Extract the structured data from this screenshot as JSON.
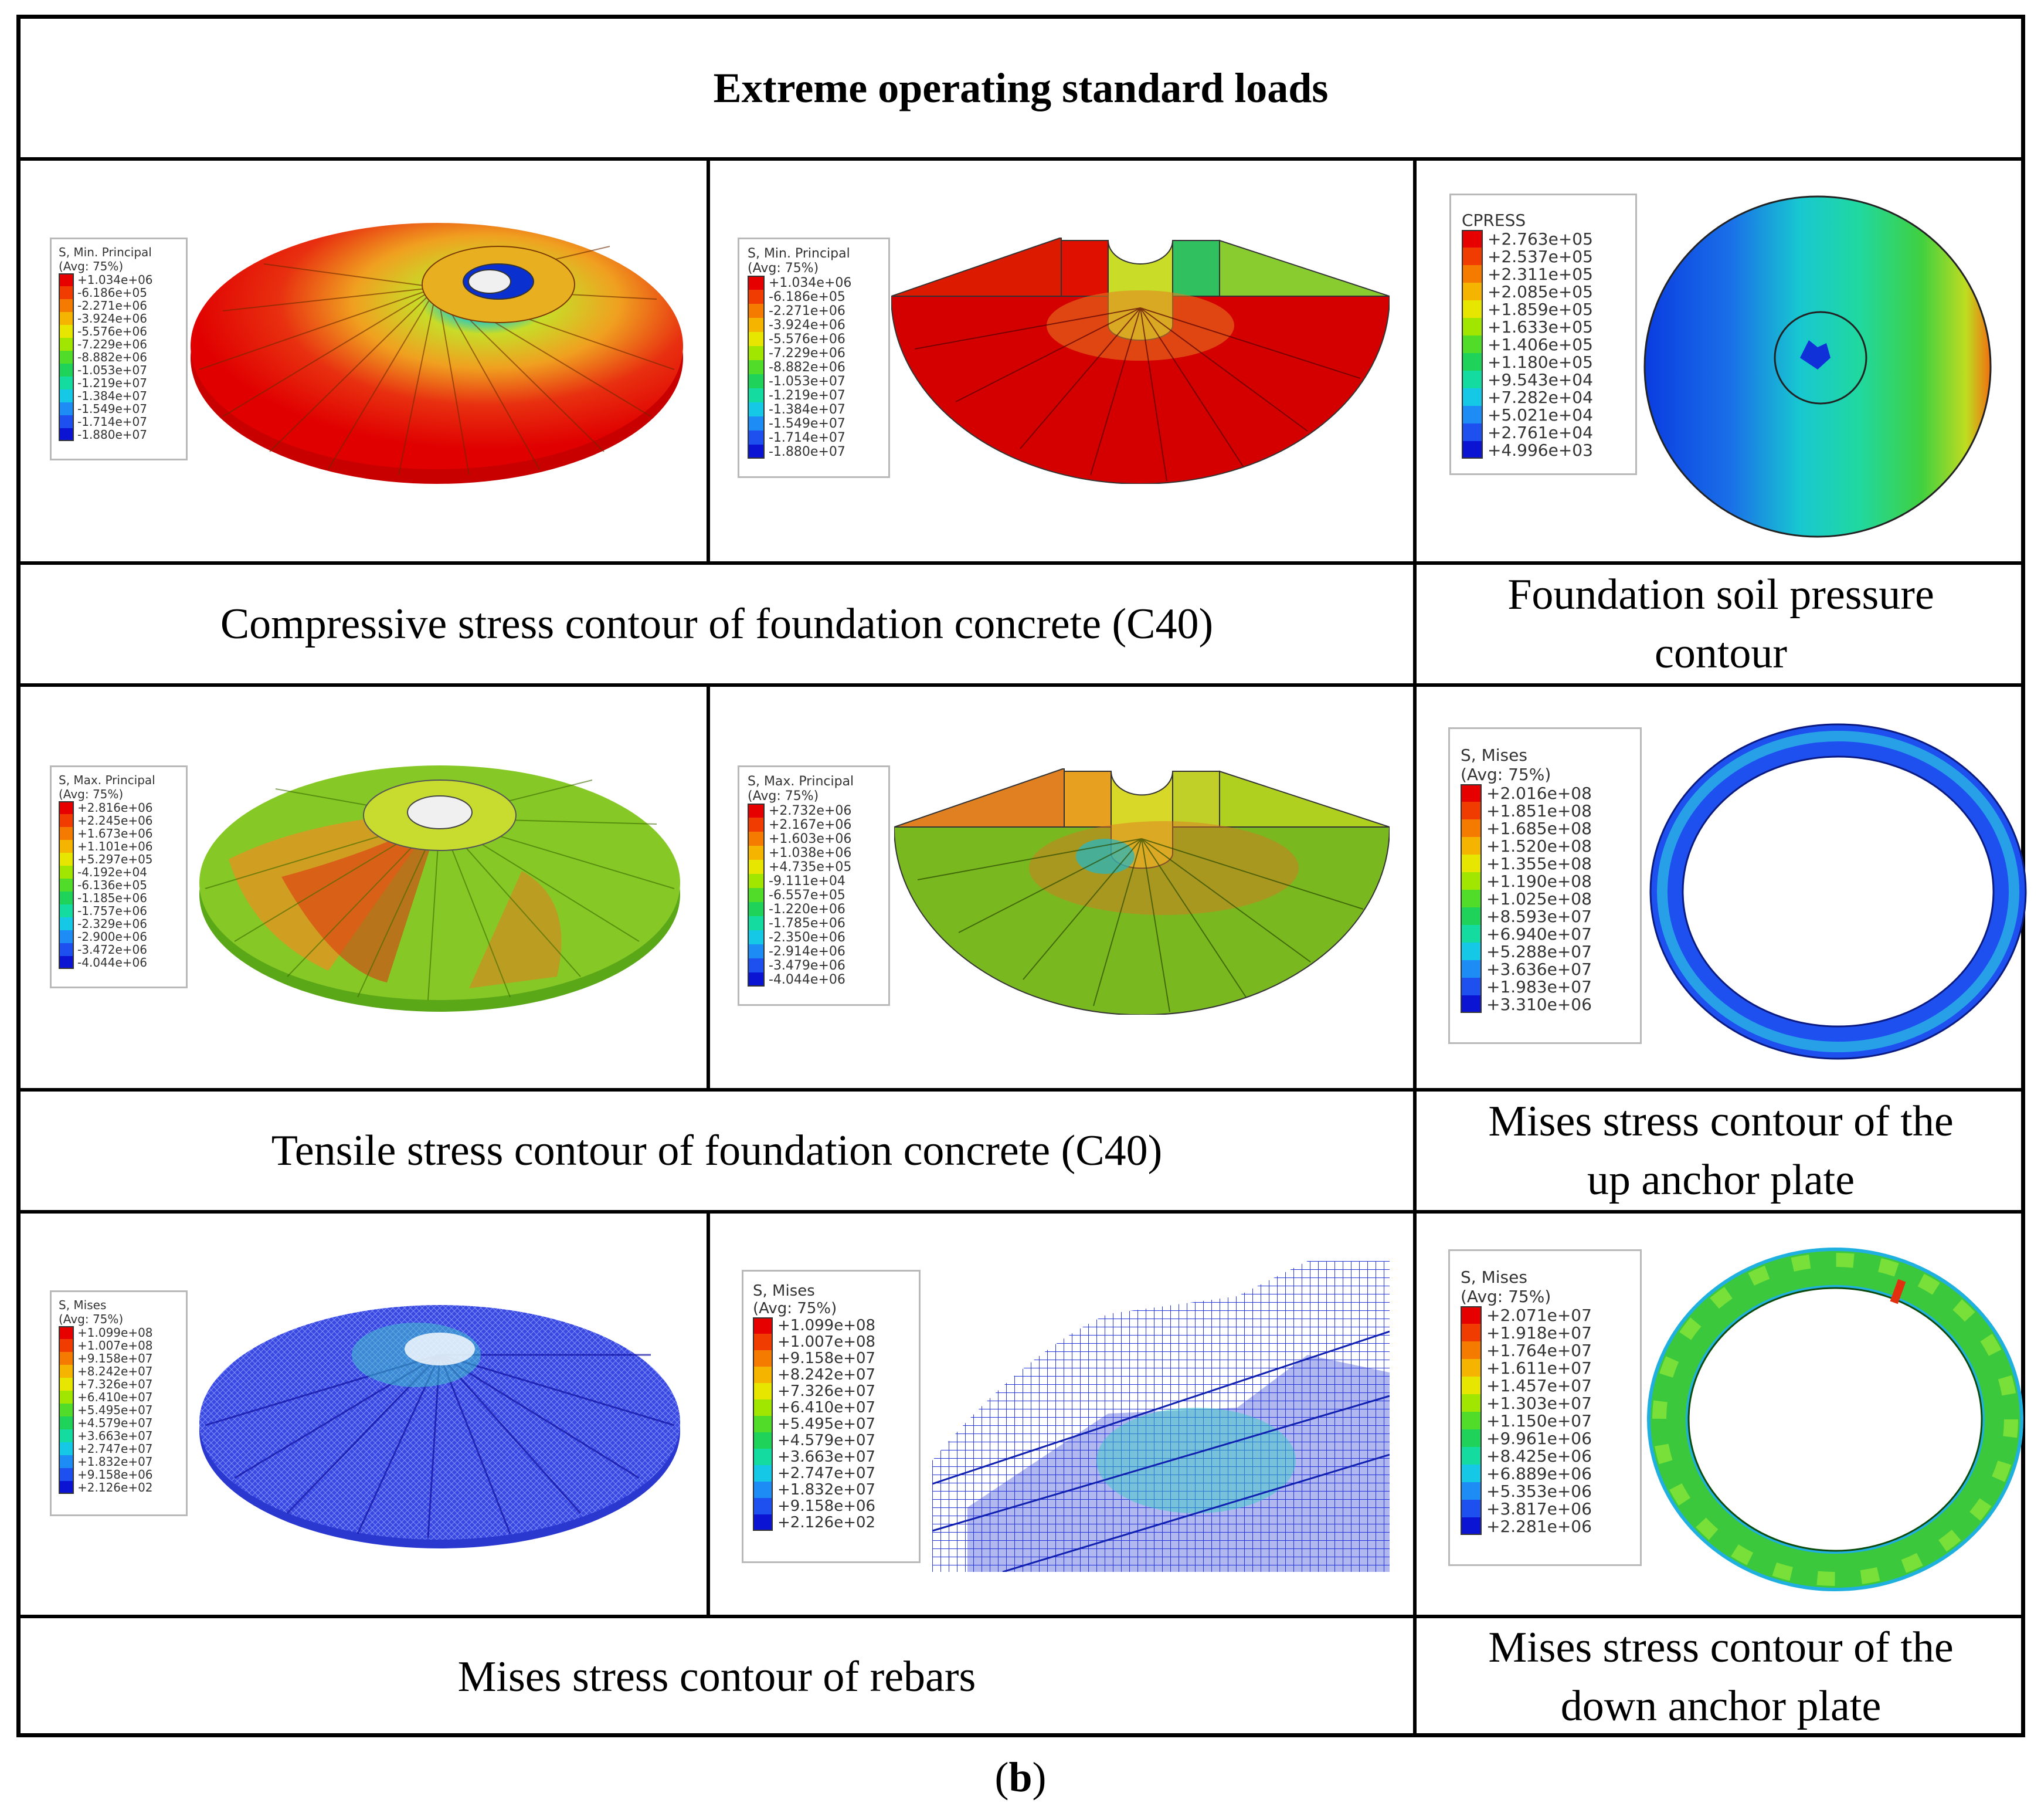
{
  "title": "Extreme operating standard loads",
  "sublabel": {
    "open": "(",
    "letter": "b",
    "close": ")"
  },
  "captions": {
    "compressive": "Compressive stress contour of foundation concrete (C40)",
    "soil_pressure_l1": "Foundation soil pressure",
    "soil_pressure_l2": "contour",
    "tensile": "Tensile stress contour of foundation concrete (C40)",
    "up_plate_l1": "Mises stress contour of the",
    "up_plate_l2": "up anchor plate",
    "rebars": "Mises stress contour of rebars",
    "down_plate_l1": "Mises stress contour of the",
    "down_plate_l2": "down anchor plate"
  },
  "colors": {
    "red": "#e00000",
    "orange": "#f06a10",
    "yellow": "#dcdc1e",
    "green": "#3cc83c",
    "cyan": "#10d2d2",
    "blue": "#1848e8",
    "dark_blue": "#0000cc",
    "border": "#000000"
  },
  "legends": {
    "c1": {
      "title": "S, Min. Principal",
      "avg": "(Avg: 75%)",
      "values": [
        "+1.034e+06",
        "-6.186e+05",
        "-2.271e+06",
        "-3.924e+06",
        "-5.576e+06",
        "-7.229e+06",
        "-8.882e+06",
        "-1.053e+07",
        "-1.219e+07",
        "-1.384e+07",
        "-1.549e+07",
        "-1.714e+07",
        "-1.880e+07"
      ]
    },
    "c2": {
      "title": "S, Min. Principal",
      "avg": "(Avg: 75%)",
      "values": [
        "+1.034e+06",
        "-6.186e+05",
        "-2.271e+06",
        "-3.924e+06",
        "-5.576e+06",
        "-7.229e+06",
        "-8.882e+06",
        "-1.053e+07",
        "-1.219e+07",
        "-1.384e+07",
        "-1.549e+07",
        "-1.714e+07",
        "-1.880e+07"
      ]
    },
    "c3": {
      "title": "CPRESS",
      "avg": "",
      "values": [
        "+2.763e+05",
        "+2.537e+05",
        "+2.311e+05",
        "+2.085e+05",
        "+1.859e+05",
        "+1.633e+05",
        "+1.406e+05",
        "+1.180e+05",
        "+9.543e+04",
        "+7.282e+04",
        "+5.021e+04",
        "+2.761e+04",
        "+4.996e+03"
      ]
    },
    "t1": {
      "title": "S, Max. Principal",
      "avg": "(Avg: 75%)",
      "values": [
        "+2.816e+06",
        "+2.245e+06",
        "+1.673e+06",
        "+1.101e+06",
        "+5.297e+05",
        "-4.192e+04",
        "-6.136e+05",
        "-1.185e+06",
        "-1.757e+06",
        "-2.329e+06",
        "-2.900e+06",
        "-3.472e+06",
        "-4.044e+06"
      ]
    },
    "t2": {
      "title": "S, Max. Principal",
      "avg": "(Avg: 75%)",
      "values": [
        "+2.732e+06",
        "+2.167e+06",
        "+1.603e+06",
        "+1.038e+06",
        "+4.735e+05",
        "-9.111e+04",
        "-6.557e+05",
        "-1.220e+06",
        "-1.785e+06",
        "-2.350e+06",
        "-2.914e+06",
        "-3.479e+06",
        "-4.044e+06"
      ]
    },
    "t3": {
      "title": "S, Mises",
      "avg": "(Avg: 75%)",
      "values": [
        "+2.016e+08",
        "+1.851e+08",
        "+1.685e+08",
        "+1.520e+08",
        "+1.355e+08",
        "+1.190e+08",
        "+1.025e+08",
        "+8.593e+07",
        "+6.940e+07",
        "+5.288e+07",
        "+3.636e+07",
        "+1.983e+07",
        "+3.310e+06"
      ]
    },
    "r1": {
      "title": "S, Mises",
      "avg": "(Avg: 75%)",
      "values": [
        "+1.099e+08",
        "+1.007e+08",
        "+9.158e+07",
        "+8.242e+07",
        "+7.326e+07",
        "+6.410e+07",
        "+5.495e+07",
        "+4.579e+07",
        "+3.663e+07",
        "+2.747e+07",
        "+1.832e+07",
        "+9.158e+06",
        "+2.126e+02"
      ]
    },
    "r2": {
      "title": "S, Mises",
      "avg": "(Avg: 75%)",
      "values": [
        "+1.099e+08",
        "+1.007e+08",
        "+9.158e+07",
        "+8.242e+07",
        "+7.326e+07",
        "+6.410e+07",
        "+5.495e+07",
        "+4.579e+07",
        "+3.663e+07",
        "+2.747e+07",
        "+1.832e+07",
        "+9.158e+06",
        "+2.126e+02"
      ]
    },
    "r3": {
      "title": "S, Mises",
      "avg": "(Avg: 75%)",
      "values": [
        "+2.071e+07",
        "+1.918e+07",
        "+1.764e+07",
        "+1.611e+07",
        "+1.457e+07",
        "+1.303e+07",
        "+1.150e+07",
        "+9.961e+06",
        "+8.425e+06",
        "+6.889e+06",
        "+5.353e+06",
        "+3.817e+06",
        "+2.281e+06"
      ]
    }
  },
  "colorbar": [
    "#e60000",
    "#f03c00",
    "#f57a00",
    "#f5b400",
    "#e6e600",
    "#a0e600",
    "#50dc28",
    "#1ed25a",
    "#14dca0",
    "#14c8e6",
    "#1e8cf5",
    "#1e50f0",
    "#0a14d2"
  ]
}
